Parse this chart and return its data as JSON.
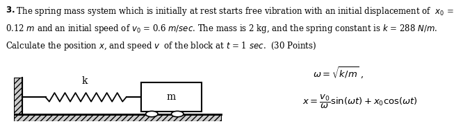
{
  "text_line1_bold": "3.",
  "text_line1_rest": " The spring mass system which is initially at rest starts free vibration with an initial displacement of  $x_0$ =",
  "text_line2": "0.12 $m$ and an initial speed of $v_0$ = 0.6 $m/sec$. The mass is 2 kg, and the spring constant is $k$ = 288 $N/m$.",
  "text_line3": "Calculate the position $x$, and speed $v$  of the block at $t$ = 1 $sec$.  (30 Points)",
  "formula1": "$\\omega = \\sqrt{k/m}$ ,",
  "formula2": "$x = \\dfrac{v_0}{\\omega}\\sin(\\omega t) + x_0 \\cos(\\omega t)$",
  "label_k": "k",
  "label_m": "m",
  "bg_color": "#ffffff",
  "text_color": "#000000",
  "fontsize_text": 8.5,
  "fontsize_formula": 9.5
}
